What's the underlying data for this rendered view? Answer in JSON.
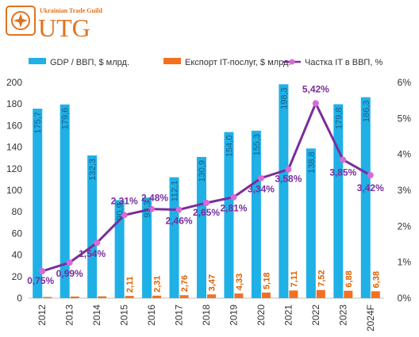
{
  "logo": {
    "tagline": "Ukrainian Trade Guild",
    "wordmark": "UTG",
    "color": "#e0731f"
  },
  "chart_data": {
    "type": "bar",
    "categories": [
      "2012",
      "2013",
      "2014",
      "2015",
      "2016",
      "2017",
      "2018",
      "2019",
      "2020",
      "2021",
      "2022",
      "2023",
      "2024F"
    ],
    "series": [
      {
        "name": "GDP / ВВП, $ млрд.",
        "type": "bar",
        "axis": "left",
        "color": "#1fb0e6",
        "values": [
          175.7,
          179.6,
          132.3,
          90.9,
          93.3,
          112.1,
          130.9,
          154.0,
          155.3,
          198.3,
          138.8,
          179.8,
          186.3
        ],
        "labels": [
          "175,7",
          "179,6",
          "132,3",
          "90,9",
          "93,3",
          "112,1",
          "130,9",
          "154,0",
          "155,3",
          "198,3",
          "138,8",
          "179,8",
          "186,3"
        ]
      },
      {
        "name": "Експорт IT-послуг, $ млрд.",
        "type": "bar",
        "axis": "left",
        "color": "#f37021",
        "values": [
          1.1,
          1.5,
          1.7,
          2.11,
          2.31,
          2.76,
          3.47,
          4.33,
          5.18,
          7.11,
          7.52,
          6.88,
          6.38
        ],
        "labels": [
          "",
          "",
          "",
          "2,11",
          "2,31",
          "2,76",
          "3,47",
          "4,33",
          "5,18",
          "7,11",
          "7,52",
          "6,88",
          "6,38"
        ]
      },
      {
        "name": "Частка IT в ВВП, %",
        "type": "line",
        "axis": "right",
        "color": "#7a2d9c",
        "marker_color": "#d86ad8",
        "values": [
          0.75,
          0.99,
          1.54,
          2.31,
          2.48,
          2.46,
          2.65,
          2.81,
          3.34,
          3.58,
          5.42,
          3.85,
          3.42
        ],
        "labels": [
          "0,75%",
          "0,99%",
          "1,54%",
          "2,31%",
          "2,48%",
          "2,46%",
          "2,65%",
          "2,81%",
          "3,34%",
          "3,58%",
          "5,42%",
          "3,85%",
          "3,42%"
        ]
      }
    ],
    "y_left": {
      "min": 0,
      "max": 200,
      "step": 20,
      "ticks": [
        "0",
        "20",
        "40",
        "60",
        "80",
        "100",
        "120",
        "140",
        "160",
        "180",
        "200"
      ]
    },
    "y_right": {
      "min": 0,
      "max": 6,
      "step": 1,
      "ticks": [
        "0%",
        "1%",
        "2%",
        "3%",
        "4%",
        "5%",
        "6%"
      ]
    },
    "legend_position": "top",
    "grid": false
  }
}
